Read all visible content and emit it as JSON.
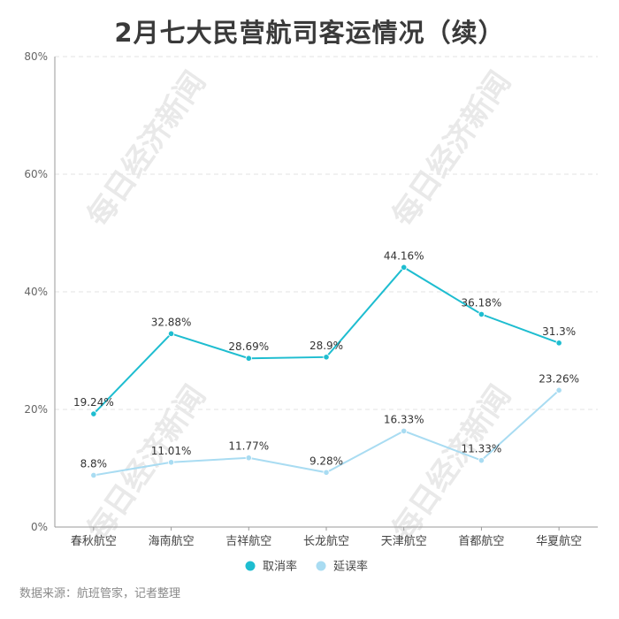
{
  "chart_data": {
    "type": "line",
    "title": "2月七大民营航司客运情况（续）",
    "categories": [
      "春秋航空",
      "海南航空",
      "吉祥航空",
      "长龙航空",
      "天津航空",
      "首都航空",
      "华夏航空"
    ],
    "series": [
      {
        "name": "取消率",
        "color": "#1ebdd0",
        "values": [
          19.24,
          32.88,
          28.69,
          28.9,
          44.16,
          36.18,
          31.3
        ],
        "labels": [
          "19.24%",
          "32.88%",
          "28.69%",
          "28.9%",
          "44.16%",
          "36.18%",
          "31.3%"
        ]
      },
      {
        "name": "延误率",
        "color": "#a9dcf2",
        "values": [
          8.8,
          11.01,
          11.77,
          9.28,
          16.33,
          11.33,
          23.26
        ],
        "labels": [
          "8.8%",
          "11.01%",
          "11.77%",
          "9.28%",
          "16.33%",
          "11.33%",
          "23.26%"
        ]
      }
    ],
    "ylim": [
      0,
      80
    ],
    "yticks": [
      "0%",
      "20%",
      "40%",
      "60%",
      "80%"
    ],
    "ytick_values": [
      0,
      20,
      40,
      60,
      80
    ],
    "grid": true,
    "legend_position": "bottom-center",
    "xlabel": "",
    "ylabel": ""
  },
  "watermark": "每日经济新闻",
  "source_note": "数据来源：航班管家，记者整理"
}
